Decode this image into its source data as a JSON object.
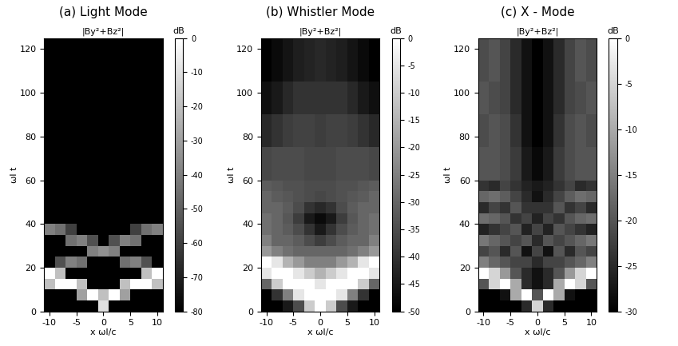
{
  "chart_data": [
    {
      "type": "heatmap",
      "title": "(a) Light Mode",
      "subtitle": "|By²+Bz²|",
      "x_label": "x ωl/c",
      "y_label": "ωl t",
      "color": "gray",
      "xlim": [
        -11,
        11
      ],
      "ylim": [
        0,
        125
      ],
      "xticks": [
        -10,
        -5,
        0,
        5,
        10
      ],
      "yticks": [
        0,
        20,
        40,
        60,
        80,
        100,
        120
      ],
      "x_edges": [
        -11,
        -9,
        -7,
        -5,
        -3,
        -1,
        1,
        3,
        5,
        7,
        9,
        11
      ],
      "y_edges": [
        0,
        5,
        10,
        15,
        20,
        25,
        30,
        35,
        40,
        45,
        50,
        55,
        60,
        75,
        90,
        105,
        125
      ],
      "cells": [
        [
          -80,
          -80,
          -80,
          -80,
          -80,
          -10,
          -80,
          -80,
          -80,
          -80,
          -80
        ],
        [
          -80,
          -80,
          -80,
          -30,
          0,
          -20,
          0,
          -30,
          -80,
          -80,
          -80
        ],
        [
          -20,
          0,
          0,
          -20,
          -80,
          -80,
          -80,
          -20,
          0,
          0,
          -20
        ],
        [
          0,
          -20,
          -80,
          -80,
          -80,
          -80,
          -80,
          -80,
          -80,
          -20,
          0
        ],
        [
          -80,
          -55,
          -40,
          -45,
          -80,
          -80,
          -80,
          -45,
          -40,
          -55,
          -80
        ],
        [
          -80,
          -80,
          -80,
          -80,
          -40,
          -35,
          -40,
          -80,
          -80,
          -80,
          -80
        ],
        [
          -80,
          -80,
          -45,
          -40,
          -55,
          -80,
          -55,
          -40,
          -45,
          -80,
          -80
        ],
        [
          -40,
          -45,
          -60,
          -80,
          -80,
          -80,
          -80,
          -80,
          -60,
          -45,
          -40
        ],
        [
          -80,
          -80,
          -80,
          -80,
          -80,
          -80,
          -80,
          -80,
          -80,
          -80,
          -80
        ],
        [
          -80,
          -80,
          -80,
          -80,
          -80,
          -80,
          -80,
          -80,
          -80,
          -80,
          -80
        ],
        [
          -80,
          -80,
          -80,
          -80,
          -80,
          -80,
          -80,
          -80,
          -80,
          -80,
          -80
        ],
        [
          -80,
          -80,
          -80,
          -80,
          -80,
          -80,
          -80,
          -80,
          -80,
          -80,
          -80
        ],
        [
          -80,
          -80,
          -80,
          -80,
          -80,
          -80,
          -80,
          -80,
          -80,
          -80,
          -80
        ],
        [
          -80,
          -80,
          -80,
          -80,
          -80,
          -80,
          -80,
          -80,
          -80,
          -80,
          -80
        ],
        [
          -80,
          -80,
          -80,
          -80,
          -80,
          -80,
          -80,
          -80,
          -80,
          -80,
          -80
        ],
        [
          -80,
          -80,
          -80,
          -80,
          -80,
          -80,
          -80,
          -80,
          -80,
          -80,
          -80
        ]
      ],
      "colorbar": {
        "label": "dB",
        "range": [
          -80,
          0
        ],
        "ticks": [
          0,
          -10,
          -20,
          -30,
          -40,
          -50,
          -60,
          -70,
          -80
        ]
      }
    },
    {
      "type": "heatmap",
      "title": "(b) Whistler Mode",
      "subtitle": "|By²+Bz²|",
      "x_label": "x ωl/c",
      "y_label": "ωl t",
      "color": "gray",
      "xlim": [
        -11,
        11
      ],
      "ylim": [
        0,
        125
      ],
      "xticks": [
        -10,
        -5,
        0,
        5,
        10
      ],
      "yticks": [
        0,
        20,
        40,
        60,
        80,
        100,
        120
      ],
      "x_edges": [
        -11,
        -9,
        -7,
        -5,
        -3,
        -1,
        1,
        3,
        5,
        7,
        9,
        11
      ],
      "y_edges": [
        0,
        5,
        10,
        15,
        20,
        25,
        30,
        35,
        40,
        45,
        50,
        55,
        60,
        75,
        90,
        105,
        125
      ],
      "cells": [
        [
          -50,
          -50,
          -45,
          -35,
          -10,
          0,
          -10,
          -35,
          -45,
          -50,
          -50
        ],
        [
          -50,
          -40,
          -25,
          -5,
          0,
          0,
          0,
          -5,
          -25,
          -40,
          -50
        ],
        [
          -30,
          -10,
          0,
          0,
          0,
          -5,
          0,
          0,
          0,
          -10,
          -30
        ],
        [
          -5,
          0,
          0,
          -5,
          -10,
          -15,
          -10,
          -5,
          0,
          0,
          -5
        ],
        [
          0,
          -5,
          -15,
          -20,
          -25,
          -25,
          -25,
          -20,
          -15,
          -5,
          0
        ],
        [
          -20,
          -25,
          -28,
          -30,
          -30,
          -30,
          -30,
          -30,
          -28,
          -25,
          -20
        ],
        [
          -25,
          -30,
          -30,
          -32,
          -35,
          -38,
          -35,
          -32,
          -30,
          -30,
          -25
        ],
        [
          -28,
          -30,
          -32,
          -35,
          -40,
          -45,
          -40,
          -35,
          -32,
          -30,
          -28
        ],
        [
          -28,
          -30,
          -33,
          -38,
          -45,
          -48,
          -45,
          -38,
          -33,
          -30,
          -28
        ],
        [
          -30,
          -30,
          -32,
          -35,
          -40,
          -42,
          -40,
          -35,
          -32,
          -30,
          -30
        ],
        [
          -30,
          -32,
          -33,
          -34,
          -35,
          -36,
          -35,
          -34,
          -33,
          -32,
          -30
        ],
        [
          -32,
          -33,
          -34,
          -34,
          -35,
          -35,
          -35,
          -34,
          -34,
          -33,
          -32
        ],
        [
          -36,
          -35,
          -35,
          -35,
          -36,
          -36,
          -36,
          -35,
          -35,
          -35,
          -36
        ],
        [
          -42,
          -40,
          -38,
          -37,
          -37,
          -38,
          -37,
          -37,
          -38,
          -40,
          -42
        ],
        [
          -47,
          -45,
          -42,
          -40,
          -40,
          -40,
          -40,
          -40,
          -42,
          -45,
          -47
        ],
        [
          -50,
          -48,
          -46,
          -44,
          -43,
          -42,
          -43,
          -44,
          -46,
          -48,
          -50
        ]
      ],
      "colorbar": {
        "label": "dB",
        "range": [
          -50,
          0
        ],
        "ticks": [
          0,
          -5,
          -10,
          -15,
          -20,
          -25,
          -30,
          -35,
          -40,
          -45,
          -50
        ]
      }
    },
    {
      "type": "heatmap",
      "title": "(c) X - Mode",
      "subtitle": "|By²+Bz²|",
      "x_label": "x ωl/c",
      "y_label": "ωl t",
      "color": "gray",
      "xlim": [
        -11,
        11
      ],
      "ylim": [
        0,
        125
      ],
      "xticks": [
        -10,
        -5,
        0,
        5,
        10
      ],
      "yticks": [
        0,
        20,
        40,
        60,
        80,
        100,
        120
      ],
      "x_edges": [
        -11,
        -9,
        -7,
        -5,
        -3,
        -1,
        1,
        3,
        5,
        7,
        9,
        11
      ],
      "y_edges": [
        0,
        5,
        10,
        15,
        20,
        25,
        30,
        35,
        40,
        45,
        50,
        55,
        60,
        75,
        90,
        105,
        125
      ],
      "cells": [
        [
          -30,
          -30,
          -30,
          -30,
          -25,
          -5,
          -25,
          -30,
          -30,
          -30,
          -30
        ],
        [
          -30,
          -30,
          -28,
          -10,
          0,
          -20,
          0,
          -10,
          -28,
          -30,
          -30
        ],
        [
          -20,
          -5,
          0,
          -10,
          -25,
          -28,
          -25,
          -10,
          0,
          -5,
          -20
        ],
        [
          0,
          -5,
          -12,
          -20,
          -25,
          -28,
          -25,
          -20,
          -12,
          -5,
          0
        ],
        [
          -15,
          -18,
          -20,
          -22,
          -22,
          -25,
          -22,
          -22,
          -20,
          -18,
          -15
        ],
        [
          -22,
          -20,
          -25,
          -20,
          -28,
          -22,
          -28,
          -20,
          -25,
          -20,
          -22
        ],
        [
          -16,
          -18,
          -20,
          -22,
          -20,
          -25,
          -20,
          -22,
          -20,
          -18,
          -16
        ],
        [
          -26,
          -24,
          -22,
          -20,
          -26,
          -22,
          -26,
          -20,
          -22,
          -24,
          -26
        ],
        [
          -17,
          -18,
          -20,
          -24,
          -22,
          -26,
          -22,
          -24,
          -20,
          -18,
          -17
        ],
        [
          -25,
          -22,
          -24,
          -20,
          -24,
          -24,
          -24,
          -20,
          -24,
          -22,
          -25
        ],
        [
          -18,
          -17,
          -19,
          -22,
          -25,
          -28,
          -25,
          -22,
          -19,
          -17,
          -18
        ],
        [
          -24,
          -25,
          -22,
          -24,
          -26,
          -27,
          -26,
          -24,
          -22,
          -25,
          -24
        ],
        [
          -20,
          -20,
          -21,
          -23,
          -27,
          -29,
          -27,
          -23,
          -21,
          -20,
          -20
        ],
        [
          -21,
          -20,
          -21,
          -24,
          -28,
          -30,
          -28,
          -24,
          -21,
          -20,
          -21
        ],
        [
          -20,
          -21,
          -22,
          -25,
          -28,
          -30,
          -28,
          -25,
          -22,
          -21,
          -20
        ],
        [
          -21,
          -20,
          -22,
          -25,
          -28,
          -30,
          -28,
          -25,
          -22,
          -20,
          -21
        ]
      ],
      "colorbar": {
        "label": "dB",
        "range": [
          -30,
          0
        ],
        "ticks": [
          0,
          -5,
          -10,
          -15,
          -20,
          -25,
          -30
        ]
      }
    }
  ]
}
